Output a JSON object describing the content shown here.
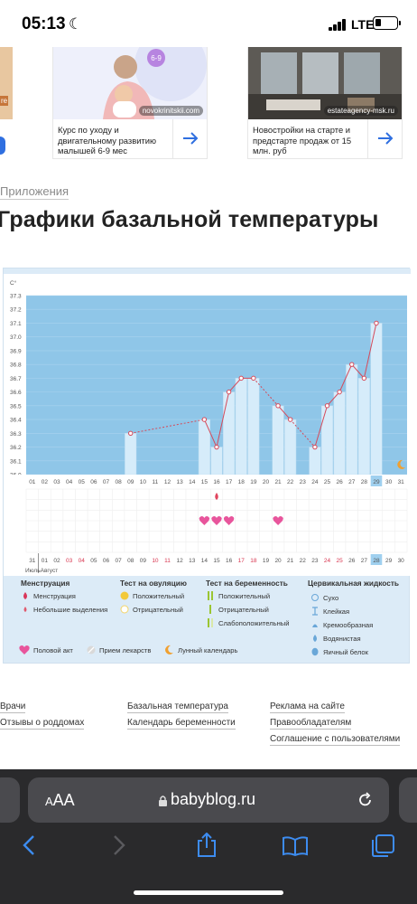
{
  "status_bar": {
    "time": "05:13",
    "network": "LTE"
  },
  "ads": [
    {
      "text": "Курс по уходу и двигательному развитию малышей 6-9 мес",
      "source": "novokrinitskii.com",
      "badge": "6-9"
    },
    {
      "text": "Новостройки на старте и предстарте продаж от 15 млн. руб",
      "source": "estateagency-msk.ru"
    }
  ],
  "ad_left_edge_label": "re",
  "breadcrumb": "Приложения",
  "title": "Графики базальной температуры",
  "chart_data": {
    "type": "line",
    "unit_label": "C°",
    "yticks": [
      "37.3",
      "37.2",
      "37.1",
      "37.0",
      "36.9",
      "36.8",
      "36.7",
      "36.6",
      "36.5",
      "36.4",
      "36.3",
      "36.2",
      "36.1",
      "36.0"
    ],
    "ylim": [
      36.0,
      37.3
    ],
    "x_days": [
      "01",
      "02",
      "03",
      "04",
      "05",
      "06",
      "07",
      "08",
      "09",
      "10",
      "11",
      "12",
      "13",
      "14",
      "15",
      "16",
      "17",
      "18",
      "19",
      "20",
      "21",
      "22",
      "23",
      "24",
      "25",
      "26",
      "27",
      "28",
      "29",
      "30",
      "31"
    ],
    "highlight_day": "29",
    "series": [
      {
        "points": [
          [
            9,
            36.3
          ],
          [
            15,
            36.4
          ],
          [
            16,
            36.2
          ],
          [
            17,
            36.6
          ],
          [
            18,
            36.7
          ],
          [
            19,
            36.7
          ],
          [
            21,
            36.5
          ],
          [
            22,
            36.4
          ],
          [
            24,
            36.2
          ],
          [
            25,
            36.5
          ],
          [
            26,
            36.6
          ],
          [
            27,
            36.8
          ],
          [
            28,
            36.7
          ],
          [
            29,
            37.1
          ]
        ]
      }
    ],
    "measured_days": [
      9,
      15,
      16,
      17,
      18,
      19,
      21,
      22,
      24,
      25,
      26,
      27,
      28,
      29
    ],
    "menstruation_days": [
      16
    ],
    "intercourse_days": [
      15,
      16,
      17,
      21
    ],
    "lunar_day": 31,
    "calendar_days": [
      "31",
      "01",
      "02",
      "03",
      "04",
      "05",
      "06",
      "07",
      "08",
      "09",
      "10",
      "11",
      "12",
      "13",
      "14",
      "15",
      "16",
      "17",
      "18",
      "19",
      "20",
      "21",
      "22",
      "23",
      "24",
      "25",
      "26",
      "27",
      "28",
      "29",
      "30"
    ],
    "calendar_red": [
      "03",
      "04",
      "10",
      "11",
      "17",
      "18",
      "24",
      "25"
    ],
    "calendar_highlight": "28",
    "months": {
      "first": "Июль",
      "second": "Август"
    }
  },
  "legend": {
    "menstruation": {
      "title": "Менструация",
      "items": [
        "Менструация",
        "Небольшие выделения"
      ]
    },
    "ovulation": {
      "title": "Тест на овуляцию",
      "items": [
        "Положительный",
        "Отрицательный"
      ]
    },
    "pregnancy": {
      "title": "Тест на беременность",
      "items": [
        "Положительный",
        "Отрицательный",
        "Слабоположительный"
      ]
    },
    "cervical": {
      "title": "Цервикальная жидкость",
      "items": [
        "Сухо",
        "Клейкая",
        "Кремообразная",
        "Водянистая",
        "Яичный белок"
      ]
    },
    "bottom": [
      "Половой акт",
      "Прием лекарств",
      "Лунный календарь"
    ]
  },
  "colors": {
    "chart_bg": "#8fc6e8",
    "bar": "#d6ecfa",
    "line": "#d54a5a",
    "accent": "#2f6fe0"
  },
  "footer": {
    "col1": [
      "Врачи",
      "Отзывы о роддомах"
    ],
    "col2": [
      "Базальная температура",
      "Календарь беременности"
    ],
    "col3": [
      "Реклама на сайте",
      "Правообладателям",
      "Соглашение с пользователями"
    ]
  },
  "browser": {
    "aa": "AA",
    "domain": "babyblog.ru"
  }
}
